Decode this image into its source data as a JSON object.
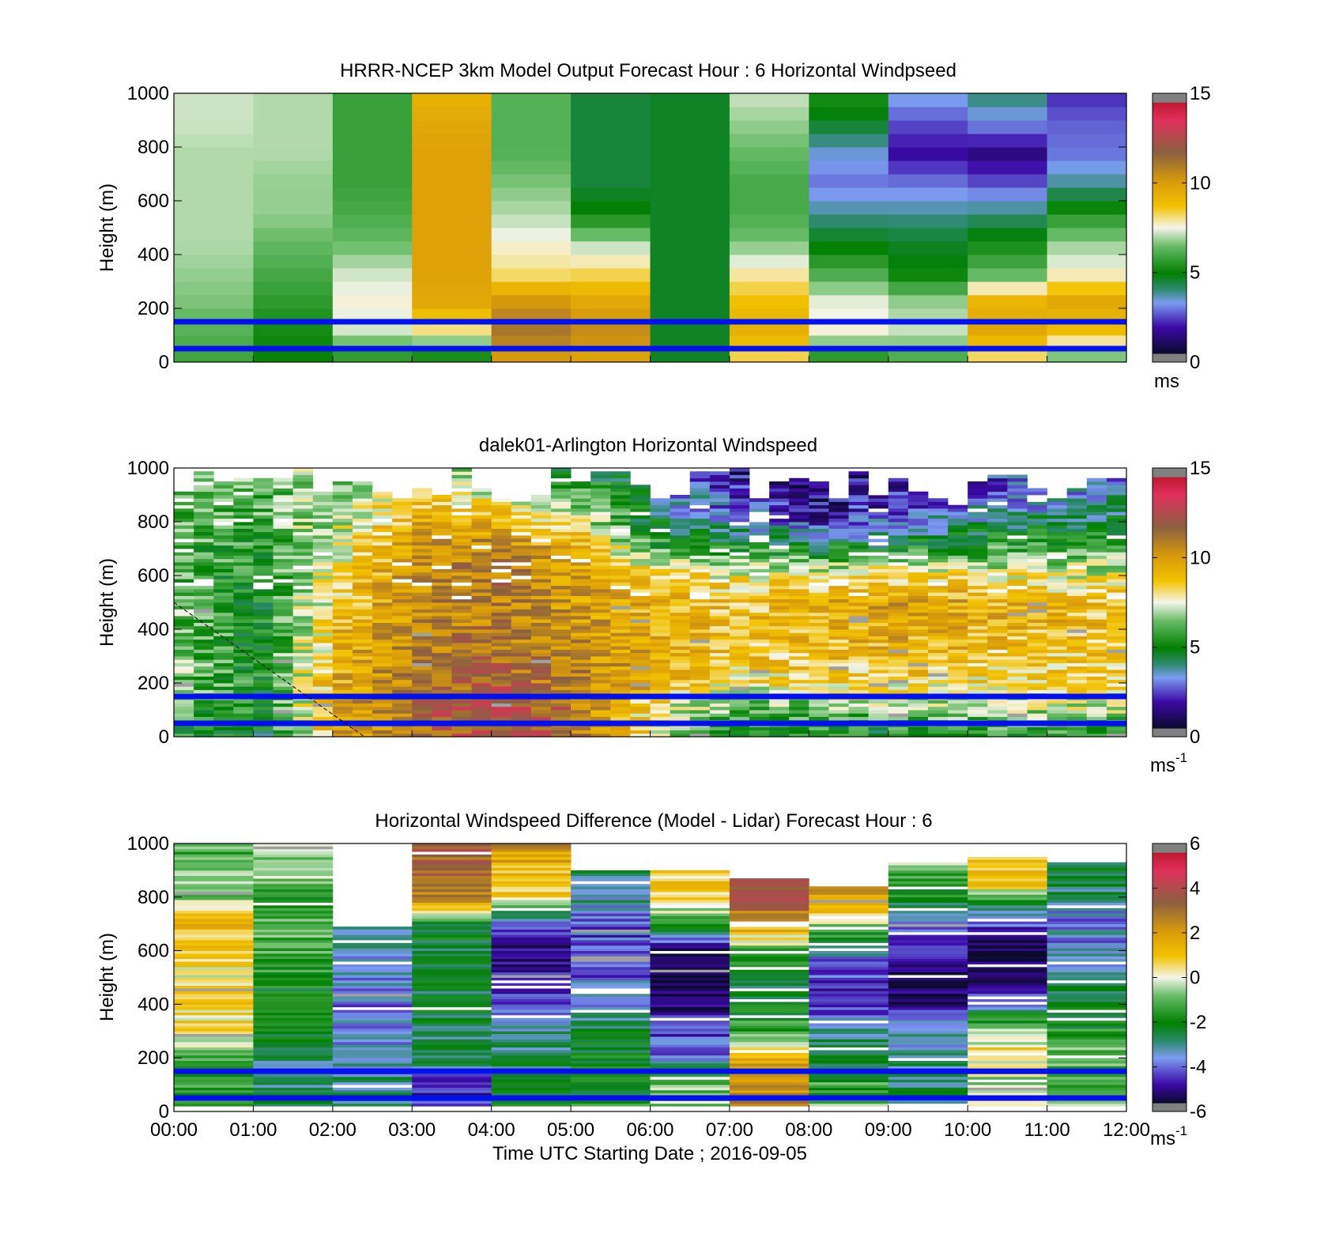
{
  "chart_data": [
    {
      "type": "heatmap",
      "title": "HRRR-NCEP 3km Model Output   Forecast Hour : 6 Horizontal Windpseed",
      "ylabel": "Height (m)",
      "xlabel": "",
      "ylim": [
        0,
        1000
      ],
      "yticks": [
        "0",
        "200",
        "400",
        "600",
        "800",
        "1000"
      ],
      "xlim": [
        0,
        12
      ],
      "show_xtick_labels": false,
      "colorbar": {
        "min": 0,
        "max": 15,
        "ticks": [
          "0",
          "5",
          "10",
          "15"
        ],
        "unit": "ms",
        "unit_sup": ""
      },
      "hlines_m": [
        150,
        50
      ],
      "hline_color": "#0010ee",
      "resolution": "model",
      "columns_wind_ms": [
        [
          5.8,
          6.2,
          6.6,
          6.8,
          7.0,
          7.0,
          7.0,
          7.0,
          7.2,
          7.2
        ],
        [
          5.0,
          5.2,
          5.6,
          6.0,
          6.4,
          6.8,
          6.8,
          7.0,
          7.0,
          7.0
        ],
        [
          5.2,
          7.2,
          7.6,
          7.2,
          6.4,
          6.0,
          5.8,
          5.8,
          5.8,
          5.8
        ],
        [
          4.6,
          7.8,
          9.6,
          9.8,
          9.8,
          9.8,
          9.8,
          9.8,
          9.6,
          9.2
        ],
        [
          9.8,
          11.2,
          10.2,
          8.0,
          7.6,
          7.0,
          6.6,
          6.2,
          6.2,
          6.2
        ],
        [
          9.6,
          10.6,
          9.6,
          8.2,
          7.0,
          5.0,
          4.4,
          4.4,
          4.4,
          4.4
        ],
        [
          4.6,
          4.6,
          4.6,
          4.6,
          4.6,
          4.6,
          4.6,
          4.6,
          4.6,
          4.6
        ],
        [
          8.0,
          9.4,
          8.8,
          7.8,
          6.6,
          6.0,
          6.0,
          6.4,
          6.8,
          7.2
        ],
        [
          5.0,
          7.6,
          7.4,
          6.0,
          4.8,
          3.6,
          2.6,
          3.2,
          4.6,
          5.4
        ],
        [
          5.8,
          7.2,
          6.8,
          5.0,
          4.6,
          3.6,
          2.6,
          1.4,
          2.2,
          3.2
        ],
        [
          7.8,
          9.6,
          9.2,
          6.2,
          5.2,
          3.8,
          2.2,
          1.0,
          2.8,
          4.0
        ],
        [
          6.0,
          8.8,
          9.6,
          7.6,
          6.8,
          5.4,
          3.6,
          2.6,
          2.4,
          1.8
        ]
      ]
    },
    {
      "type": "heatmap",
      "title": "dalek01-Arlington  Horizontal Windspeed",
      "ylabel": "Height (m)",
      "xlabel": "",
      "ylim": [
        0,
        1000
      ],
      "yticks": [
        "0",
        "200",
        "400",
        "600",
        "800",
        "1000"
      ],
      "xlim": [
        0,
        12
      ],
      "show_xtick_labels": false,
      "colorbar": {
        "min": 0,
        "max": 15,
        "ticks": [
          "0",
          "5",
          "10",
          "15"
        ],
        "unit": "ms",
        "unit_sup": "-1"
      },
      "hlines_m": [
        150,
        50
      ],
      "hline_color": "#0010ee",
      "resolution": "lidar",
      "profile_hours": [
        0,
        1,
        2,
        3,
        4,
        5,
        6,
        7,
        8,
        9,
        10,
        11,
        12
      ],
      "profile_heights_m": [
        0,
        100,
        200,
        300,
        400,
        500,
        600,
        700,
        800,
        900,
        1000
      ],
      "profiles_ms": [
        [
          5.2,
          6.0,
          6.4,
          6.4,
          6.2,
          6.2,
          6.0,
          6.0,
          6.2,
          6.4,
          6.6
        ],
        [
          4.6,
          5.0,
          5.2,
          5.0,
          5.0,
          5.2,
          5.4,
          5.6,
          6.0,
          6.2,
          6.4
        ],
        [
          9.6,
          9.8,
          9.6,
          9.4,
          9.2,
          8.6,
          8.2,
          7.8,
          7.4,
          7.0,
          6.8
        ],
        [
          11.4,
          11.6,
          11.0,
          10.8,
          10.6,
          10.6,
          10.4,
          10.2,
          9.4,
          8.2,
          7.2
        ],
        [
          12.4,
          12.6,
          11.8,
          11.2,
          11.0,
          10.8,
          11.0,
          10.8,
          9.2,
          7.2,
          5.6
        ],
        [
          10.8,
          11.0,
          10.6,
          10.4,
          10.2,
          10.0,
          9.8,
          9.0,
          7.6,
          6.0,
          4.8
        ],
        [
          7.2,
          7.8,
          9.2,
          9.4,
          9.4,
          9.2,
          8.2,
          5.8,
          4.2,
          3.6,
          3.0
        ],
        [
          5.2,
          6.2,
          8.0,
          8.6,
          8.8,
          8.8,
          7.6,
          5.4,
          2.8,
          1.8,
          1.2
        ],
        [
          5.0,
          6.4,
          8.2,
          8.8,
          9.2,
          9.2,
          7.8,
          4.6,
          1.8,
          0.8,
          0.6
        ],
        [
          4.8,
          6.6,
          8.4,
          9.2,
          9.6,
          9.8,
          8.2,
          5.0,
          2.6,
          1.6,
          1.4
        ],
        [
          5.2,
          6.8,
          8.2,
          8.8,
          9.2,
          9.4,
          7.8,
          5.6,
          3.6,
          2.4,
          2.0
        ],
        [
          5.4,
          7.0,
          8.2,
          8.6,
          9.0,
          9.0,
          7.6,
          5.8,
          4.2,
          2.8,
          2.2
        ],
        [
          5.6,
          7.0,
          8.2,
          8.6,
          8.8,
          8.6,
          7.4,
          5.8,
          4.6,
          3.2,
          2.6
        ]
      ],
      "diagonal_line_m": [
        [
          0,
          500
        ],
        [
          2.4,
          0
        ]
      ]
    },
    {
      "type": "heatmap",
      "title": "Horizontal Windspeed Difference (Model - Lidar) Forecast Hour : 6",
      "ylabel": "Height (m)",
      "xlabel": "Time UTC  Starting Date ; 2016-09-05",
      "ylim": [
        0,
        1000
      ],
      "yticks": [
        "0",
        "200",
        "400",
        "600",
        "800",
        "1000"
      ],
      "xlim": [
        0,
        12
      ],
      "xticks": [
        "00:00",
        "01:00",
        "02:00",
        "03:00",
        "04:00",
        "05:00",
        "06:00",
        "07:00",
        "08:00",
        "09:00",
        "10:00",
        "11:00",
        "12:00"
      ],
      "show_xtick_labels": true,
      "colorbar": {
        "min": -6,
        "max": 6,
        "ticks": [
          "-6",
          "-4",
          "-2",
          "0",
          "2",
          "4",
          "6"
        ],
        "unit": "ms",
        "unit_sup": "-1"
      },
      "hlines_m": [
        150,
        50
      ],
      "hline_color": "#0010ee",
      "resolution": "diff",
      "column_tops_m": [
        1000,
        1000,
        690,
        1000,
        1000,
        900,
        900,
        870,
        840,
        930,
        950,
        930
      ],
      "column_profiles": [
        [
          -1.5,
          -1.6,
          -1.0,
          0.4,
          0.6,
          0.2,
          0.8,
          1.2,
          -0.6,
          -1.0,
          -1.0
        ],
        [
          -2.6,
          -2.8,
          -2.8,
          -2.4,
          -2.2,
          -1.8,
          -1.2,
          -0.8,
          -1.6,
          -0.4,
          -0.4
        ],
        [
          -2.6,
          -2.8,
          -3.6,
          -3.8,
          -3.8,
          -3.6,
          -3.4,
          -3.2
        ],
        [
          -4.2,
          -4.8,
          -2.6,
          -2.6,
          -2.4,
          -2.4,
          -2.4,
          -2.2,
          2.8,
          3.2,
          3.4
        ],
        [
          -2.0,
          -2.4,
          -2.6,
          -3.2,
          -4.6,
          -5.0,
          -5.2,
          -4.0,
          0.6,
          1.2,
          2.6
        ],
        [
          -1.6,
          -2.0,
          -2.2,
          -2.6,
          -3.4,
          -4.0,
          -4.2,
          -4.0,
          -3.0,
          -2.6
        ],
        [
          -0.6,
          -1.0,
          -3.8,
          -4.4,
          -5.4,
          -5.6,
          -5.4,
          -1.2,
          0.6,
          0.8
        ],
        [
          2.6,
          2.4,
          1.6,
          -1.2,
          -2.0,
          -2.4,
          -1.6,
          1.4,
          3.6,
          4.2
        ],
        [
          -0.6,
          -1.4,
          -2.6,
          -2.8,
          -4.4,
          -4.6,
          -3.8,
          -1.8,
          1.4,
          2.6
        ],
        [
          -2.4,
          -2.6,
          -3.0,
          -3.6,
          -5.4,
          -5.4,
          -4.8,
          -3.2,
          -1.6,
          -0.8
        ],
        [
          0.4,
          -0.6,
          0.8,
          -1.2,
          -4.4,
          -5.6,
          -5.4,
          -3.6,
          1.2,
          1.2
        ],
        [
          -0.8,
          -1.2,
          -1.0,
          -1.8,
          -2.4,
          -3.2,
          -3.6,
          -3.8,
          -2.6,
          -2.4
        ]
      ]
    }
  ]
}
